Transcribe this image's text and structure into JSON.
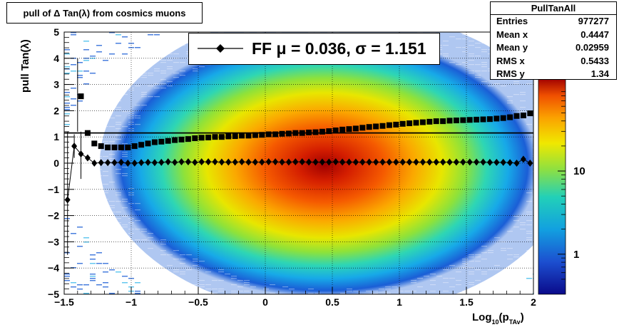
{
  "title": "pull of Δ Tan(λ) from cosmics muons",
  "stats": {
    "name": "PullTanAll",
    "rows": [
      {
        "label": "Entries",
        "value": "977277"
      },
      {
        "label": "Mean x",
        "value": "0.4447"
      },
      {
        "label": "Mean y",
        "value": "0.02959"
      },
      {
        "label": "RMS x",
        "value": "0.5433"
      },
      {
        "label": "RMS y",
        "value": "1.34"
      }
    ]
  },
  "legend": {
    "text": "FF μ =  0.036, σ =   1.151"
  },
  "chart_data": {
    "type": "heatmap",
    "title": "pull of Δ Tan(λ) from cosmics muons",
    "xlabel": "Log10(pTAv)",
    "ylabel": "pull Tan(λ)",
    "xlim": [
      -1.5,
      2
    ],
    "ylim": [
      -5,
      5
    ],
    "x_ticks": [
      -1.5,
      -1,
      -0.5,
      0,
      0.5,
      1,
      1.5,
      2
    ],
    "x_tick_labels": [
      "−1.5",
      "−1",
      "−0.5",
      "0",
      "0.5",
      "1",
      "1.5",
      "2"
    ],
    "y_ticks": [
      -5,
      -4,
      -3,
      -2,
      -1,
      0,
      1,
      2,
      3,
      4,
      5
    ],
    "y_tick_labels": [
      "−5",
      "−4",
      "−3",
      "−2",
      "−1",
      "0",
      "1",
      "2",
      "3",
      "4",
      "5"
    ],
    "colorbar": {
      "scale": "log",
      "tick_values": [
        1,
        10
      ],
      "tick_labels": [
        "1",
        "10"
      ]
    },
    "grid": true,
    "series": [
      {
        "name": "mean",
        "marker": "diamond",
        "x": [
          -1.475,
          -1.425,
          -1.375,
          -1.325,
          -1.275,
          -1.225,
          -1.175,
          -1.125,
          -1.075,
          -1.025,
          -0.975,
          -0.925,
          -0.875,
          -0.825,
          -0.775,
          -0.725,
          -0.675,
          -0.625,
          -0.575,
          -0.525,
          -0.475,
          -0.425,
          -0.375,
          -0.325,
          -0.275,
          -0.225,
          -0.175,
          -0.125,
          -0.075,
          -0.025,
          0.025,
          0.075,
          0.125,
          0.175,
          0.225,
          0.275,
          0.325,
          0.375,
          0.425,
          0.475,
          0.525,
          0.575,
          0.625,
          0.675,
          0.725,
          0.775,
          0.825,
          0.875,
          0.925,
          0.975,
          1.025,
          1.075,
          1.125,
          1.175,
          1.225,
          1.275,
          1.325,
          1.375,
          1.425,
          1.475,
          1.525,
          1.575,
          1.625,
          1.675,
          1.725,
          1.775,
          1.825,
          1.875,
          1.925,
          1.975
        ],
        "y": [
          -1.4,
          0.65,
          0.35,
          0.2,
          0.0,
          0.02,
          0.02,
          0.02,
          0.03,
          0.0,
          0.0,
          0.02,
          0.03,
          0.02,
          0.03,
          0.05,
          0.03,
          0.05,
          0.05,
          0.03,
          0.05,
          0.05,
          0.05,
          0.04,
          0.04,
          0.04,
          0.05,
          0.04,
          0.04,
          0.04,
          0.05,
          0.05,
          0.04,
          0.04,
          0.05,
          0.05,
          0.04,
          0.04,
          0.04,
          0.04,
          0.05,
          0.04,
          0.04,
          0.04,
          0.04,
          0.04,
          0.04,
          0.04,
          0.04,
          0.04,
          0.04,
          0.04,
          0.04,
          0.04,
          0.04,
          0.04,
          0.04,
          0.04,
          0.04,
          0.04,
          0.04,
          0.04,
          0.04,
          0.03,
          0.03,
          0.03,
          0.02,
          0.0,
          0.15,
          0.0
        ]
      },
      {
        "name": "sigma",
        "marker": "square",
        "x": [
          -1.375,
          -1.325,
          -1.275,
          -1.225,
          -1.175,
          -1.125,
          -1.075,
          -1.025,
          -0.975,
          -0.925,
          -0.875,
          -0.825,
          -0.775,
          -0.725,
          -0.675,
          -0.625,
          -0.575,
          -0.525,
          -0.475,
          -0.425,
          -0.375,
          -0.325,
          -0.275,
          -0.225,
          -0.175,
          -0.125,
          -0.075,
          -0.025,
          0.025,
          0.075,
          0.125,
          0.175,
          0.225,
          0.275,
          0.325,
          0.375,
          0.425,
          0.475,
          0.525,
          0.575,
          0.625,
          0.675,
          0.725,
          0.775,
          0.825,
          0.875,
          0.925,
          0.975,
          1.025,
          1.075,
          1.125,
          1.175,
          1.225,
          1.275,
          1.325,
          1.375,
          1.425,
          1.475,
          1.525,
          1.575,
          1.625,
          1.675,
          1.725,
          1.775,
          1.825,
          1.875,
          1.925,
          1.975
        ],
        "y": [
          2.55,
          1.15,
          0.75,
          0.65,
          0.6,
          0.6,
          0.6,
          0.6,
          0.65,
          0.7,
          0.75,
          0.8,
          0.82,
          0.85,
          0.88,
          0.9,
          0.92,
          0.95,
          0.97,
          0.98,
          1.0,
          1.0,
          1.02,
          1.03,
          1.05,
          1.05,
          1.07,
          1.08,
          1.1,
          1.1,
          1.12,
          1.13,
          1.15,
          1.15,
          1.17,
          1.18,
          1.2,
          1.22,
          1.25,
          1.28,
          1.3,
          1.32,
          1.35,
          1.38,
          1.4,
          1.42,
          1.45,
          1.47,
          1.5,
          1.52,
          1.54,
          1.56,
          1.58,
          1.6,
          1.6,
          1.62,
          1.63,
          1.64,
          1.65,
          1.66,
          1.67,
          1.68,
          1.7,
          1.72,
          1.75,
          1.8,
          1.82,
          1.9
        ]
      },
      {
        "name": "fit",
        "type": "line",
        "x": [
          -1.5,
          2
        ],
        "y": [
          1.151,
          1.151
        ]
      }
    ]
  }
}
